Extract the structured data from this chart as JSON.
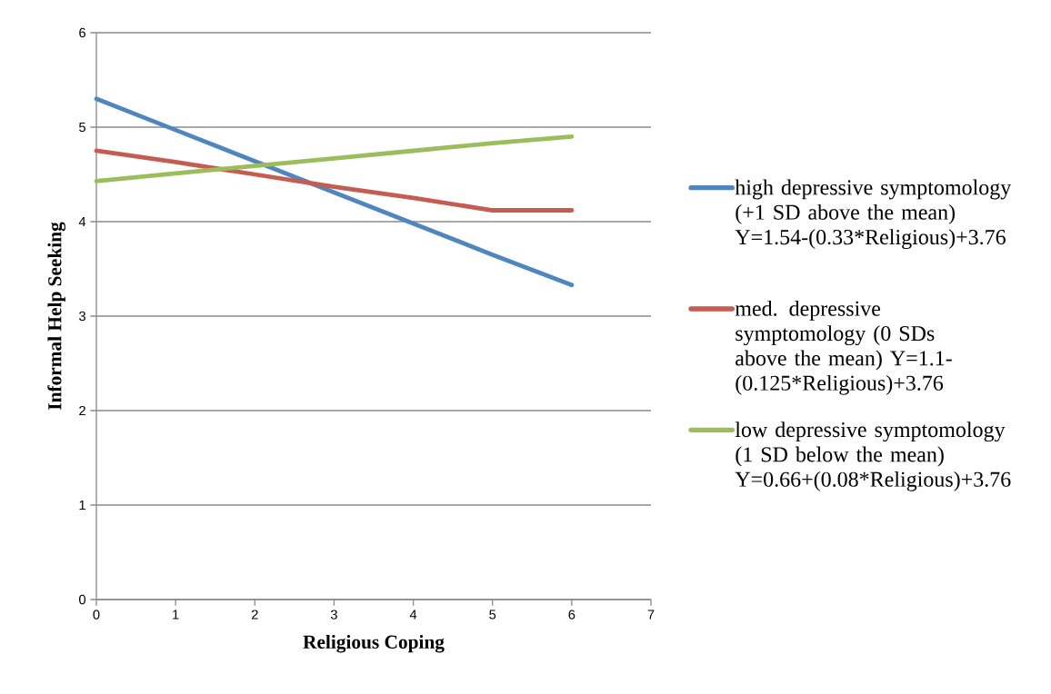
{
  "chart_data": {
    "type": "line",
    "xlabel": "Religious Coping",
    "ylabel": "Informal Help Seeking",
    "x": [
      0,
      1,
      2,
      3,
      4,
      5,
      6
    ],
    "series": [
      {
        "name": "high depressive symptomology (+1 SD above the mean) Y=1.54-(0.33*Religious)+3.76",
        "color": "#4f86c0",
        "values": [
          5.3,
          4.97,
          4.64,
          4.31,
          3.98,
          3.65,
          3.33
        ]
      },
      {
        "name": "med. depressive symptomology (0 SDs above the mean) Y=1.1-(0.125*Religious)+3.76",
        "color": "#c65b52",
        "values": [
          4.75,
          4.63,
          4.5,
          4.37,
          4.25,
          4.12,
          4.12
        ]
      },
      {
        "name": "low depressive symptomology (1 SD below the mean) Y=0.66+(0.08*Religious)+3.76",
        "color": "#9bbd5c",
        "values": [
          4.43,
          4.51,
          4.59,
          4.67,
          4.75,
          4.83,
          4.9
        ]
      }
    ],
    "xlim": [
      0,
      7
    ],
    "ylim": [
      0,
      6
    ],
    "xticks": [
      0,
      1,
      2,
      3,
      4,
      5,
      6,
      7
    ],
    "yticks": [
      0,
      1,
      2,
      3,
      4,
      5,
      6
    ],
    "grid": "y",
    "legend": "right",
    "marker": "none",
    "line_style": "solid"
  }
}
